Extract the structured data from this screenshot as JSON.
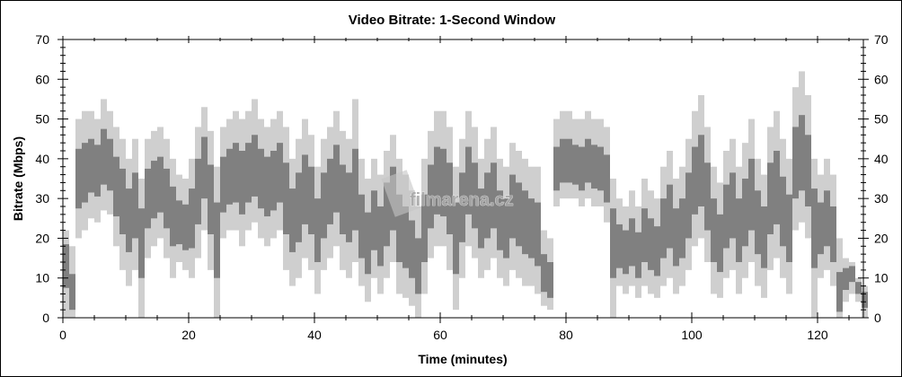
{
  "chart_data": {
    "type": "bar",
    "title": "Video Bitrate: 1-Second Window",
    "xlabel": "Time (minutes)",
    "ylabel": "Bitrate (Mbps)",
    "xlim": [
      0,
      127
    ],
    "ylim": [
      0,
      70
    ],
    "xticks": [
      0,
      20,
      40,
      60,
      80,
      100,
      120
    ],
    "yticks": [
      0,
      10,
      20,
      30,
      40,
      50,
      60,
      70
    ],
    "right_axis_mirrored": true,
    "grid": false,
    "colors": {
      "band": "#cfcfcf",
      "core": "#808080",
      "axis": "#000000"
    },
    "watermark": "filmarena.cz",
    "minutes_start": 0,
    "mean": [
      15,
      4,
      35,
      36,
      38,
      37,
      40,
      38,
      33,
      30,
      25,
      28,
      20,
      30,
      32,
      33,
      30,
      26,
      23,
      22,
      25,
      32,
      38,
      30,
      20,
      33,
      35,
      36,
      34,
      36,
      37,
      35,
      33,
      34,
      36,
      30,
      25,
      28,
      32,
      30,
      22,
      28,
      32,
      35,
      30,
      28,
      30,
      22,
      18,
      24,
      20,
      26,
      30,
      22,
      20,
      17,
      12,
      22,
      30,
      34,
      33,
      30,
      20,
      28,
      34,
      30,
      25,
      28,
      30,
      24,
      22,
      28,
      26,
      24,
      22,
      20,
      10,
      8,
      36,
      38,
      38,
      37,
      36,
      38,
      37,
      36,
      34,
      20,
      17,
      16,
      18,
      15,
      20,
      18,
      16,
      22,
      25,
      20,
      22,
      28,
      34,
      36,
      30,
      22,
      18,
      25,
      28,
      22,
      26,
      30,
      24,
      20,
      30,
      32,
      26,
      22,
      38,
      40,
      36,
      25,
      22,
      24,
      20,
      3,
      10,
      12,
      8,
      5
    ],
    "min": [
      0,
      0,
      20,
      22,
      25,
      24,
      27,
      26,
      18,
      12,
      8,
      12,
      0,
      15,
      18,
      20,
      15,
      10,
      14,
      12,
      10,
      15,
      22,
      12,
      0,
      20,
      22,
      22,
      18,
      22,
      24,
      20,
      18,
      20,
      22,
      12,
      8,
      10,
      15,
      12,
      6,
      12,
      15,
      18,
      12,
      10,
      14,
      8,
      4,
      10,
      6,
      10,
      14,
      6,
      5,
      3,
      0,
      6,
      15,
      18,
      18,
      12,
      2,
      10,
      18,
      15,
      10,
      12,
      15,
      10,
      8,
      12,
      10,
      8,
      8,
      6,
      3,
      2,
      28,
      30,
      30,
      30,
      28,
      30,
      28,
      28,
      24,
      0,
      8,
      6,
      8,
      5,
      8,
      6,
      5,
      8,
      10,
      6,
      8,
      12,
      18,
      20,
      14,
      6,
      5,
      10,
      12,
      6,
      10,
      14,
      8,
      5,
      12,
      15,
      10,
      6,
      22,
      24,
      20,
      0,
      10,
      12,
      8,
      0,
      4,
      6,
      4,
      0
    ],
    "max": [
      22,
      18,
      50,
      52,
      52,
      50,
      55,
      52,
      48,
      45,
      40,
      45,
      35,
      45,
      47,
      48,
      45,
      40,
      36,
      35,
      40,
      48,
      53,
      47,
      38,
      48,
      50,
      52,
      50,
      52,
      55,
      50,
      48,
      50,
      52,
      48,
      40,
      45,
      50,
      46,
      38,
      45,
      48,
      52,
      47,
      45,
      55,
      40,
      35,
      40,
      36,
      42,
      46,
      40,
      36,
      32,
      28,
      40,
      47,
      52,
      52,
      48,
      38,
      45,
      52,
      48,
      40,
      45,
      48,
      40,
      38,
      44,
      42,
      40,
      38,
      38,
      22,
      20,
      50,
      52,
      52,
      50,
      50,
      52,
      50,
      50,
      48,
      35,
      30,
      28,
      32,
      28,
      35,
      32,
      30,
      38,
      42,
      35,
      38,
      45,
      52,
      56,
      48,
      38,
      34,
      42,
      45,
      38,
      44,
      50,
      40,
      36,
      48,
      52,
      45,
      40,
      58,
      62,
      56,
      40,
      36,
      40,
      36,
      20,
      15,
      14,
      10,
      8
    ]
  }
}
